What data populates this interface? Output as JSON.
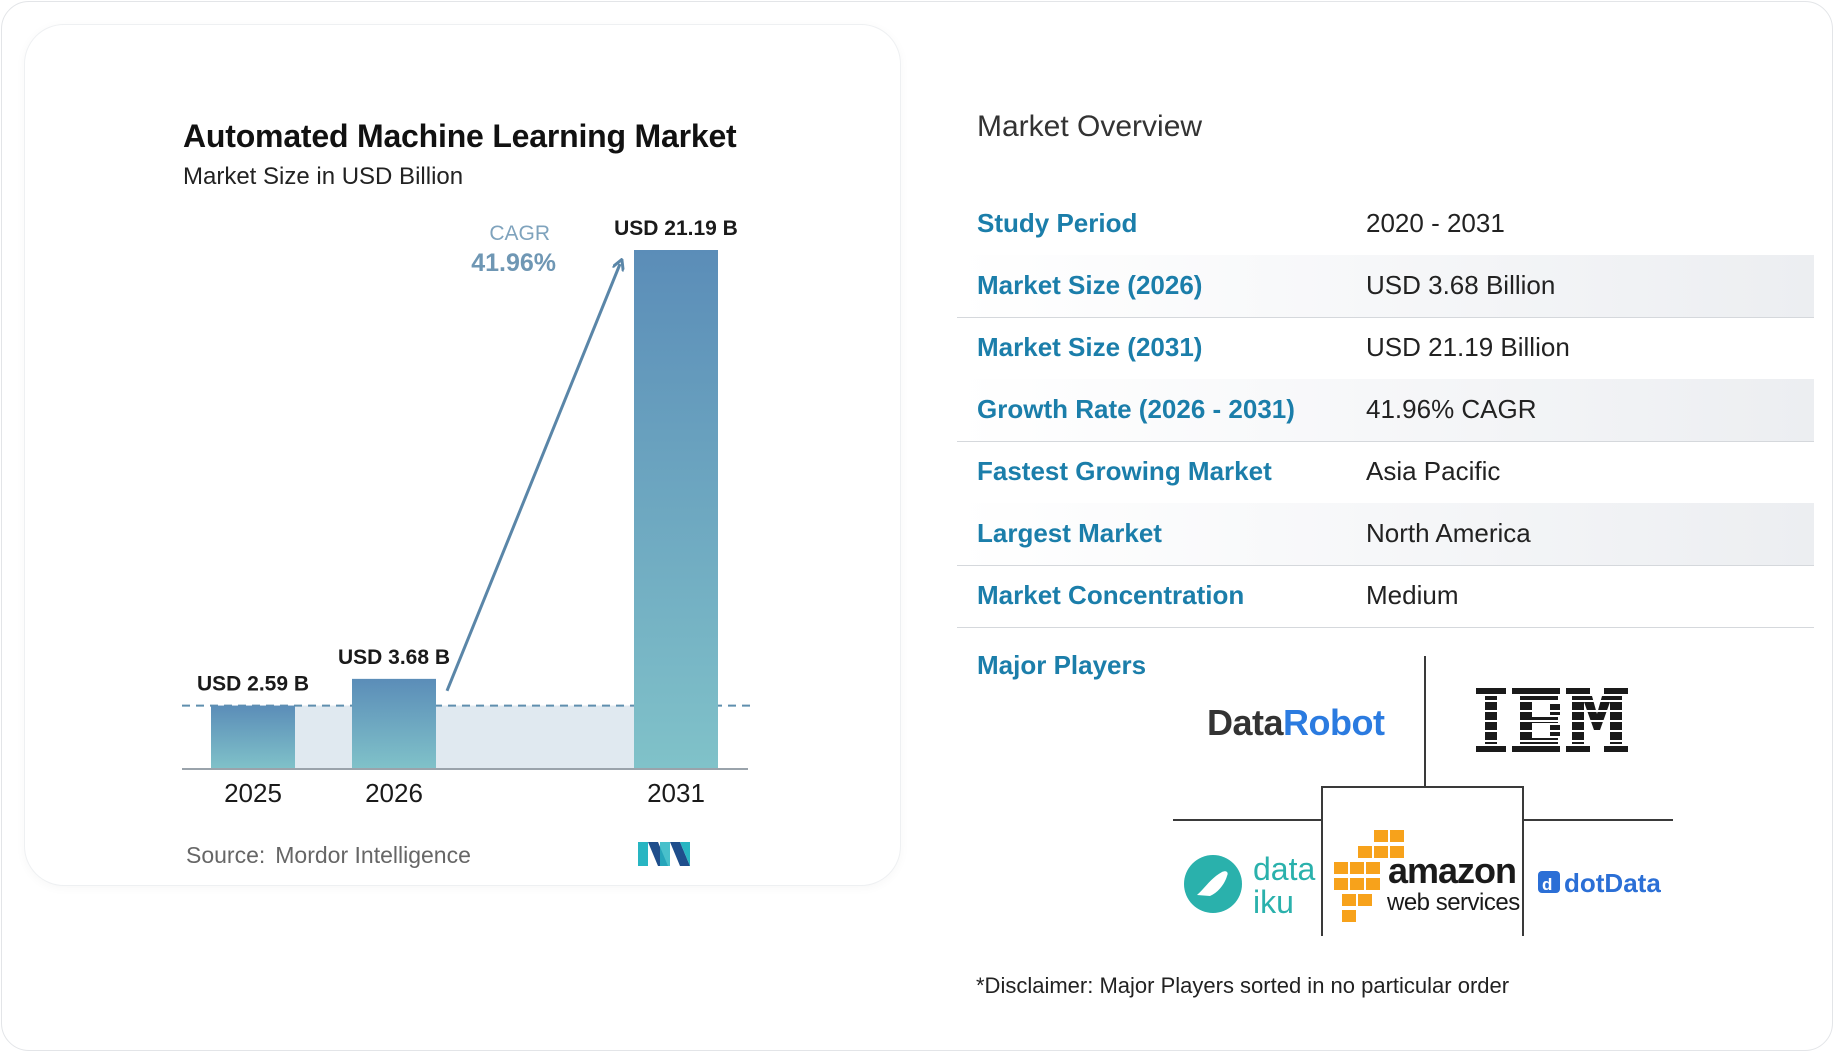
{
  "chart_data": {
    "type": "bar",
    "title": "Automated Machine Learning Market",
    "subtitle": "Market Size in USD Billion",
    "categories": [
      "2025",
      "2026",
      "2031"
    ],
    "values": [
      2.59,
      3.68,
      21.19
    ],
    "data_labels": [
      "USD 2.59 B",
      "USD 3.68 B",
      "USD 21.19 B"
    ],
    "cagr_label": "CAGR",
    "cagr_value": "41.96%",
    "colors": {
      "bar_top": "#5b8db8",
      "bar_bottom": "#80c2c9",
      "band": "#e0e9f0",
      "arrow": "#5a86a8",
      "cagr_text": "#7fa3bd"
    },
    "source_label": "Source:",
    "source_value": "Mordor Intelligence"
  },
  "overview": {
    "title": "Market Overview",
    "rows": [
      {
        "label": "Study Period",
        "value": "2020 - 2031"
      },
      {
        "label": "Market Size (2026)",
        "value": "USD 3.68 Billion"
      },
      {
        "label": "Market Size (2031)",
        "value": "USD 21.19 Billion"
      },
      {
        "label": "Growth Rate (2026 - 2031)",
        "value": "41.96% CAGR"
      },
      {
        "label": "Fastest Growing Market",
        "value": "Asia Pacific"
      },
      {
        "label": "Largest Market",
        "value": "North America"
      },
      {
        "label": "Market Concentration",
        "value": "Medium"
      }
    ]
  },
  "major_players": {
    "label": "Major Players",
    "logos": [
      {
        "name": "DataRobot",
        "part1": "Data",
        "part2": "Robot",
        "icon": "datarobot-logo"
      },
      {
        "name": "IBM",
        "icon": "ibm-logo"
      },
      {
        "name": "Dataiku",
        "line1": "data",
        "line2": "iku",
        "icon": "dataiku-logo"
      },
      {
        "name": "Amazon Web Services",
        "line1": "amazon",
        "line2": "web services",
        "icon": "aws-logo"
      },
      {
        "name": "dotData",
        "text": "dotData",
        "icon": "dotdata-logo"
      }
    ]
  },
  "disclaimer": "*Disclaimer: Major Players sorted in no particular order",
  "brand": {
    "accent": "#1b7eaa",
    "mi_teal": "#28b5c2",
    "mi_blue": "#1f4e8c",
    "dataiku": "#2ab1ac",
    "aws_orange": "#f7a21b"
  }
}
